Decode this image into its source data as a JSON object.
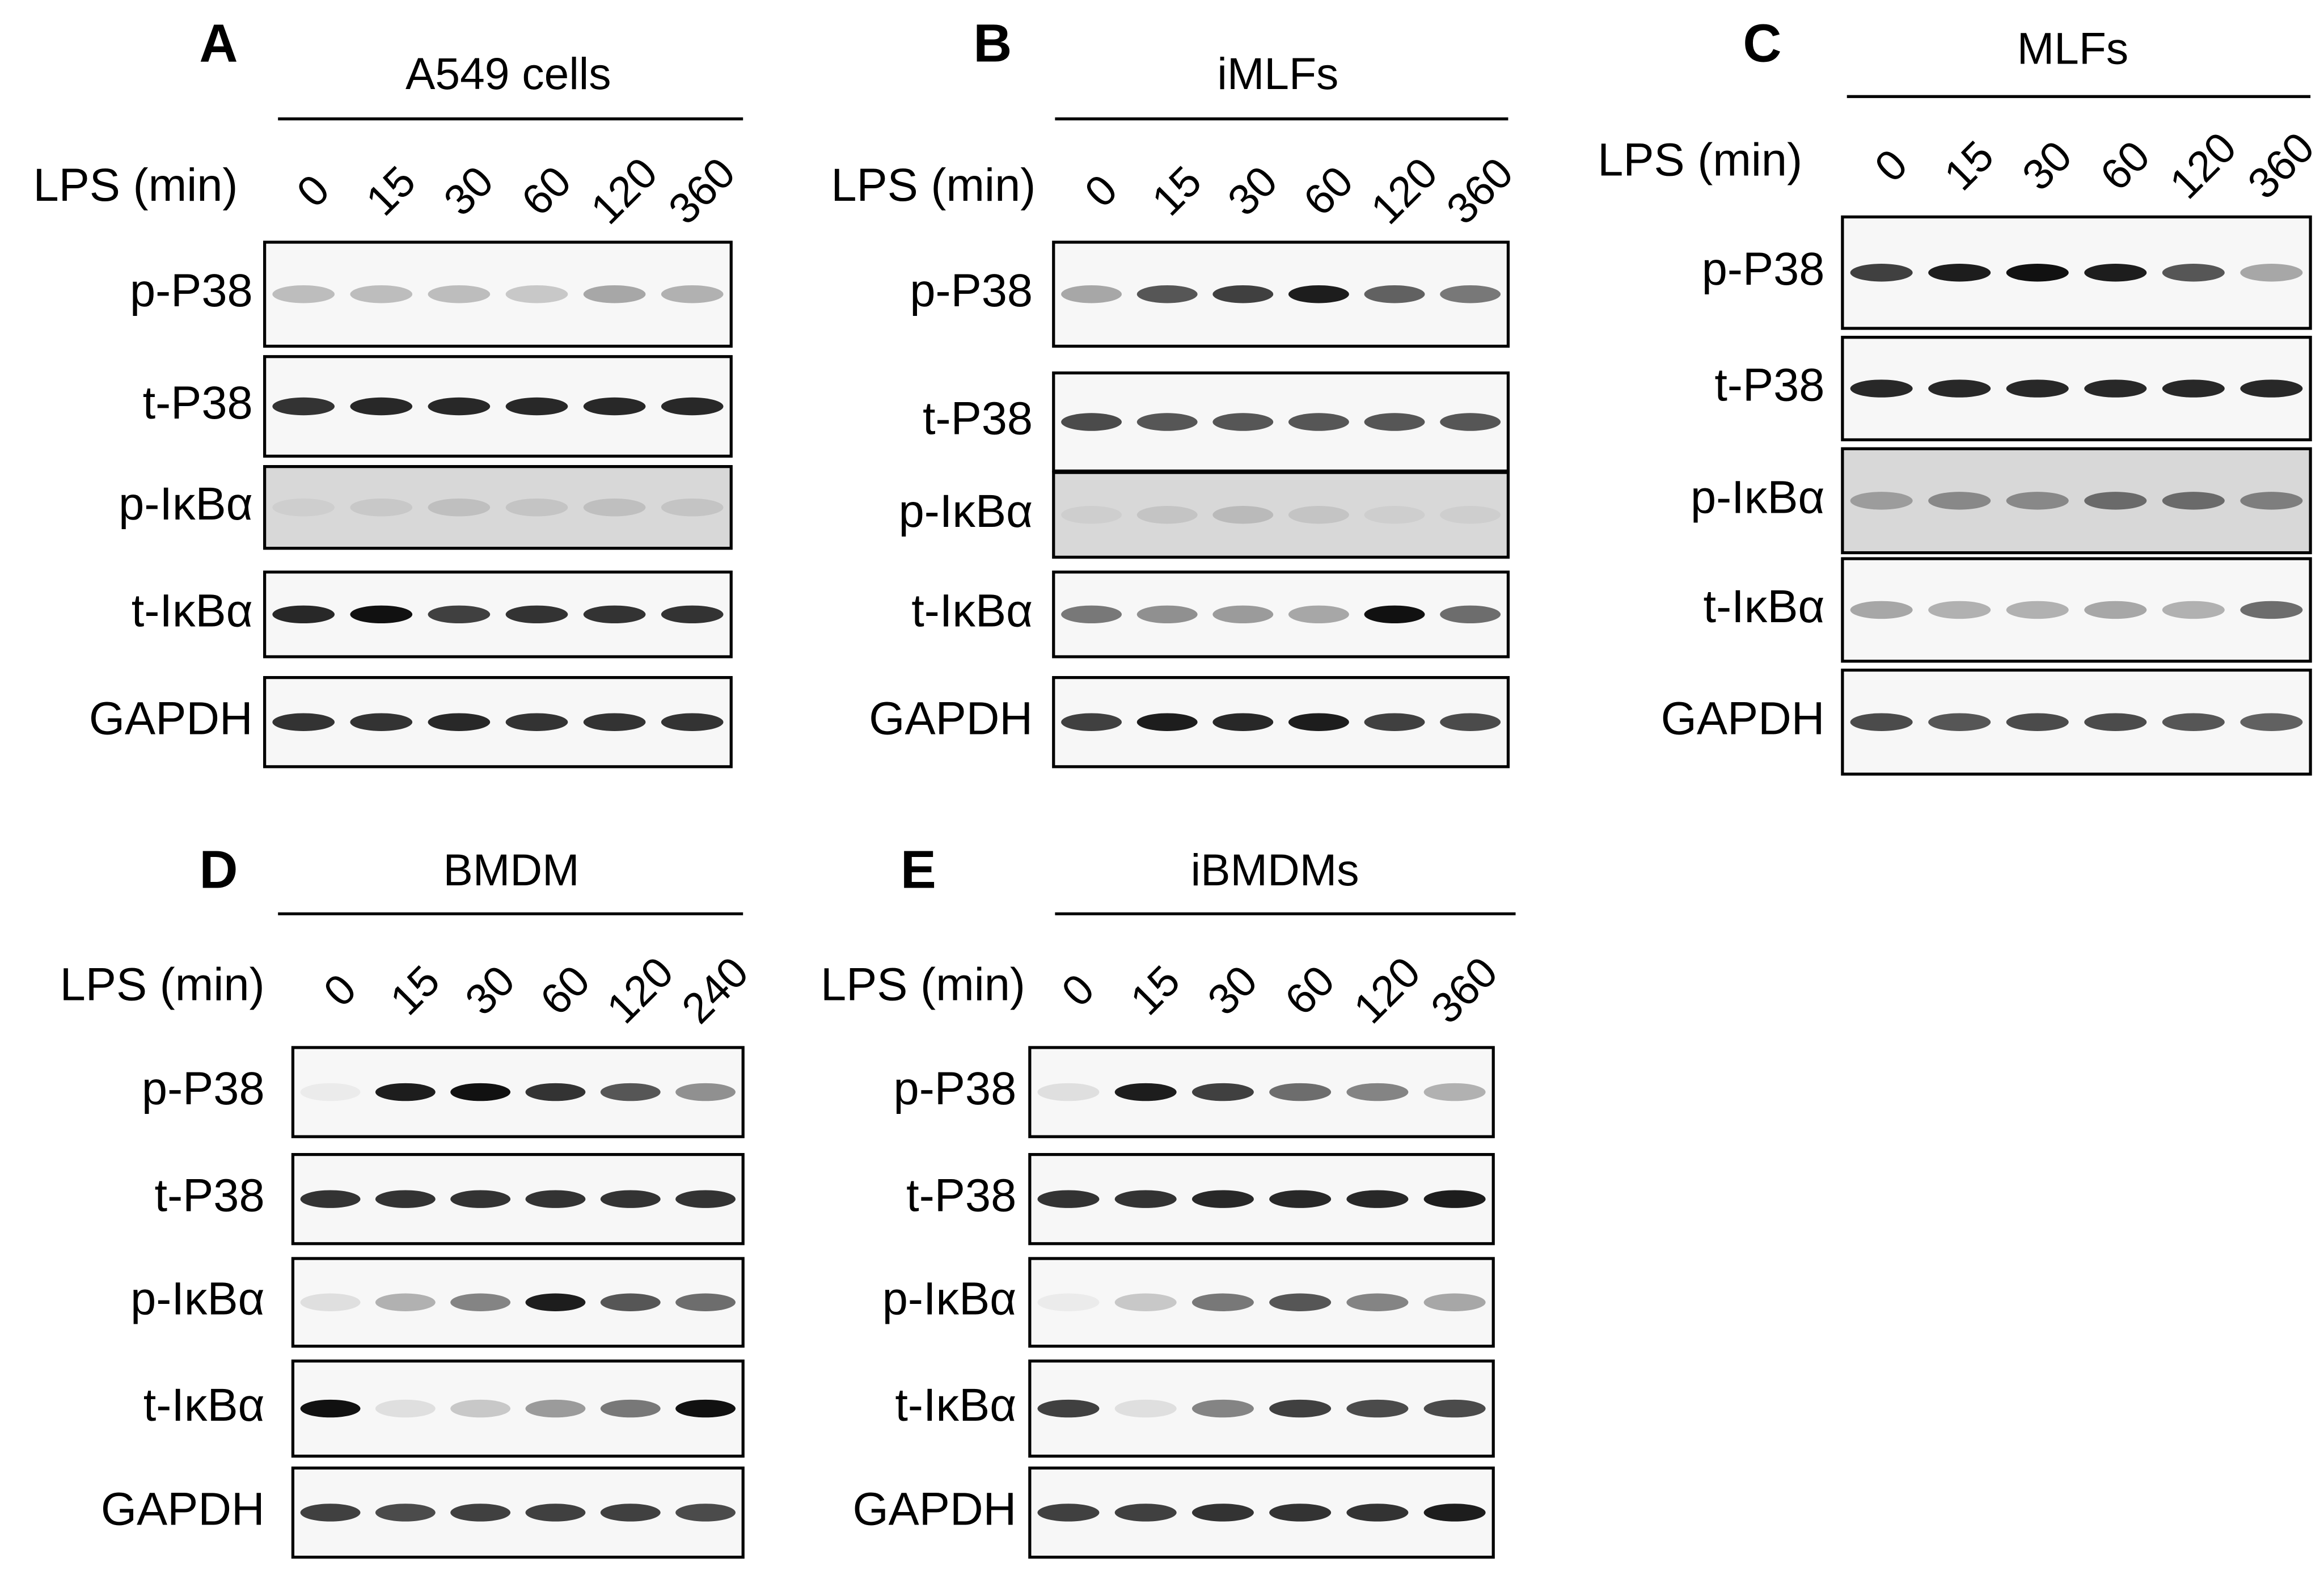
{
  "panels": [
    {
      "label": "A",
      "title": "A549 cells",
      "treatment": "LPS (min)",
      "times": [
        0,
        15,
        30,
        60,
        120,
        360
      ],
      "rows": [
        "p-P38",
        "t-P38",
        "p-IκBα",
        "t-IκBα",
        "GAPDH"
      ]
    },
    {
      "label": "B",
      "title": "iMLFs",
      "treatment": "LPS (min)",
      "times": [
        0,
        15,
        30,
        60,
        120,
        360
      ],
      "rows": [
        "p-P38",
        "t-P38",
        "p-IκBα",
        "t-IκBα",
        "GAPDH"
      ]
    },
    {
      "label": "C",
      "title": "MLFs",
      "treatment": "LPS (min)",
      "times": [
        0,
        15,
        30,
        60,
        120,
        360
      ],
      "rows": [
        "p-P38",
        "t-P38",
        "p-IκBα",
        "t-IκBα",
        "GAPDH"
      ]
    },
    {
      "label": "D",
      "title": "BMDM",
      "treatment": "LPS (min)",
      "times": [
        0,
        15,
        30,
        60,
        120,
        240
      ],
      "rows": [
        "p-P38",
        "t-P38",
        "p-IκBα",
        "t-IκBα",
        "GAPDH"
      ]
    },
    {
      "label": "E",
      "title": "iBMDMs",
      "treatment": "LPS (min)",
      "times": [
        0,
        15,
        30,
        60,
        120,
        360
      ],
      "rows": [
        "p-P38",
        "t-P38",
        "p-IκBα",
        "t-IκBα",
        "GAPDH"
      ]
    }
  ]
}
